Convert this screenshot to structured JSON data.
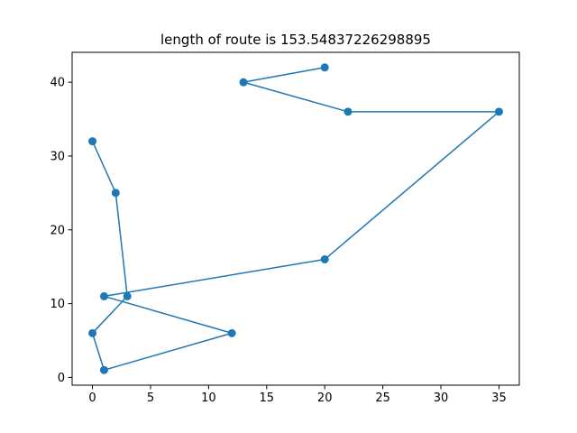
{
  "chart_data": {
    "type": "line",
    "title": "length of route is 153.54837226298895",
    "xlabel": "",
    "ylabel": "",
    "xlim": [
      -1.75,
      36.75
    ],
    "ylim": [
      -1.05,
      44.05
    ],
    "x_ticks": [
      0,
      5,
      10,
      15,
      20,
      25,
      30,
      35
    ],
    "x_tick_labels": [
      "0",
      "5",
      "10",
      "15",
      "20",
      "25",
      "30",
      "35"
    ],
    "y_ticks": [
      0,
      10,
      20,
      30,
      40
    ],
    "y_tick_labels": [
      "0",
      "10",
      "20",
      "30",
      "40"
    ],
    "grid": false,
    "legend": "none",
    "series": [
      {
        "color": "#1f77b4",
        "marker": "circle",
        "points": [
          {
            "x": 20,
            "y": 42
          },
          {
            "x": 13,
            "y": 40
          },
          {
            "x": 22,
            "y": 36
          },
          {
            "x": 35,
            "y": 36
          },
          {
            "x": 20,
            "y": 16
          },
          {
            "x": 1,
            "y": 11
          },
          {
            "x": 12,
            "y": 6
          },
          {
            "x": 1,
            "y": 1
          },
          {
            "x": 0,
            "y": 6
          },
          {
            "x": 3,
            "y": 11
          },
          {
            "x": 2,
            "y": 25
          },
          {
            "x": 0,
            "y": 32
          }
        ]
      }
    ]
  }
}
